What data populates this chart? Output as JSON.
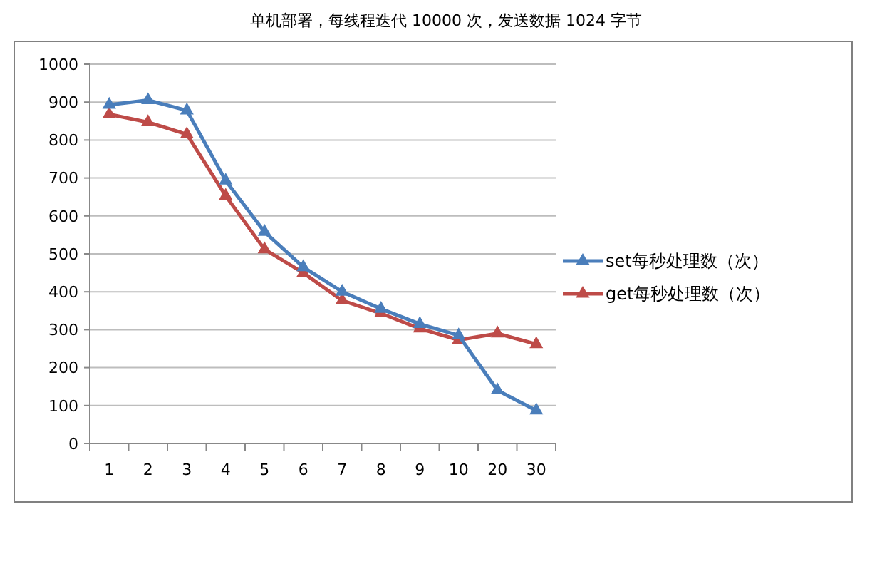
{
  "chart_data": {
    "type": "line",
    "title": "单机部署，每线程迭代 10000 次，发送数据 1024 字节",
    "categories": [
      "1",
      "2",
      "3",
      "4",
      "5",
      "6",
      "7",
      "8",
      "9",
      "10",
      "20",
      "30"
    ],
    "series": [
      {
        "name": "set每秒处理数（次）",
        "color": "#4a7ebb",
        "values": [
          893,
          905,
          878,
          693,
          558,
          465,
          400,
          355,
          315,
          285,
          140,
          87
        ]
      },
      {
        "name": "get每秒处理数（次）",
        "color": "#be4b48",
        "values": [
          868,
          847,
          815,
          653,
          512,
          450,
          377,
          343,
          303,
          273,
          290,
          262
        ]
      }
    ],
    "ylim": [
      0,
      1000
    ],
    "yticks": [
      0,
      100,
      200,
      300,
      400,
      500,
      600,
      700,
      800,
      900,
      1000
    ],
    "grid": "y",
    "legend": "right",
    "marker": "triangle",
    "line_style": "solid"
  }
}
